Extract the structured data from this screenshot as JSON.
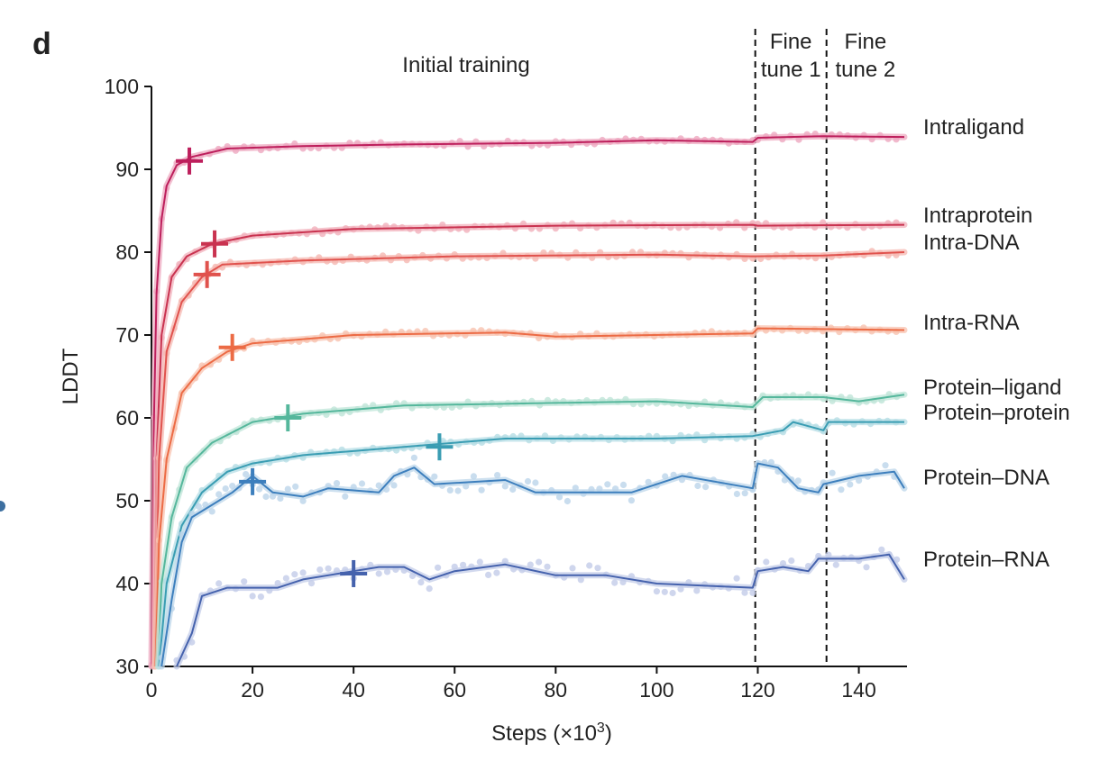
{
  "panel_label": "d",
  "chart_data": {
    "type": "line",
    "xlabel": "Steps (×10",
    "xlabel_sup": "3",
    "xlabel_end": ")",
    "ylabel": "LDDT",
    "xlim": [
      0,
      149
    ],
    "ylim": [
      30,
      100
    ],
    "xticks": [
      0,
      20,
      40,
      60,
      80,
      100,
      120,
      140
    ],
    "yticks": [
      30,
      40,
      50,
      60,
      70,
      80,
      90,
      100
    ],
    "grid": false,
    "phases": [
      {
        "label_lines": [
          "Initial training"
        ],
        "start": 0,
        "end": 119.5
      },
      {
        "label_lines": [
          "Fine",
          "tune 1"
        ],
        "start": 119.5,
        "end": 133.6
      },
      {
        "label_lines": [
          "Fine",
          "tune 2"
        ],
        "start": 133.6,
        "end": 149
      }
    ],
    "phase_boundaries": [
      119.5,
      133.6
    ],
    "series": [
      {
        "name": "Intraligand",
        "color": "#bd1f5c",
        "light": "#eea9c0",
        "marker": [
          7.5,
          91
        ],
        "points": [
          [
            0,
            30
          ],
          [
            0.5,
            60
          ],
          [
            1,
            75
          ],
          [
            2,
            84
          ],
          [
            3,
            88
          ],
          [
            5,
            90.5
          ],
          [
            8,
            91.5
          ],
          [
            15,
            92.5
          ],
          [
            30,
            92.8
          ],
          [
            50,
            93
          ],
          [
            80,
            93.2
          ],
          [
            100,
            93.5
          ],
          [
            119,
            93.3
          ],
          [
            120,
            93.8
          ],
          [
            133,
            94
          ],
          [
            149,
            93.9
          ]
        ]
      },
      {
        "name": "Intraprotein",
        "color": "#c93350",
        "light": "#f1b0bb",
        "marker": [
          12.5,
          81
        ],
        "points": [
          [
            0.5,
            30
          ],
          [
            1,
            55
          ],
          [
            2,
            70
          ],
          [
            4,
            77
          ],
          [
            7,
            79.5
          ],
          [
            12,
            81
          ],
          [
            20,
            82
          ],
          [
            40,
            82.8
          ],
          [
            80,
            83.2
          ],
          [
            119,
            83.3
          ],
          [
            120,
            83.2
          ],
          [
            149,
            83.3
          ]
        ]
      },
      {
        "name": "Intra-DNA",
        "color": "#e0524d",
        "light": "#f5b8b2",
        "marker": [
          11,
          77.3
        ],
        "points": [
          [
            0.7,
            30
          ],
          [
            1.5,
            55
          ],
          [
            3,
            68
          ],
          [
            6,
            74
          ],
          [
            10,
            77
          ],
          [
            14,
            78.5
          ],
          [
            30,
            79
          ],
          [
            60,
            79.5
          ],
          [
            100,
            79.7
          ],
          [
            119,
            79.5
          ],
          [
            133,
            79.6
          ],
          [
            149,
            80
          ]
        ]
      },
      {
        "name": "Intra-RNA",
        "color": "#ec6b45",
        "light": "#f8c3b0",
        "marker": [
          16,
          68.5
        ],
        "points": [
          [
            0.8,
            30
          ],
          [
            1.5,
            45
          ],
          [
            3,
            55
          ],
          [
            6,
            63
          ],
          [
            10,
            66
          ],
          [
            15,
            68
          ],
          [
            20,
            69
          ],
          [
            40,
            70
          ],
          [
            70,
            70.3
          ],
          [
            80,
            69.8
          ],
          [
            119,
            70.2
          ],
          [
            120,
            70.8
          ],
          [
            149,
            70.6
          ]
        ]
      },
      {
        "name": "Protein–ligand",
        "color": "#55b79c",
        "light": "#bfe5d8",
        "marker": [
          27,
          60
        ],
        "points": [
          [
            1.3,
            30
          ],
          [
            2,
            40
          ],
          [
            4,
            48
          ],
          [
            7,
            54
          ],
          [
            12,
            57
          ],
          [
            20,
            59.5
          ],
          [
            30,
            60.5
          ],
          [
            50,
            61.5
          ],
          [
            80,
            61.8
          ],
          [
            100,
            62
          ],
          [
            119,
            61.3
          ],
          [
            121,
            62.5
          ],
          [
            133,
            62.5
          ],
          [
            140,
            62
          ],
          [
            149,
            62.8
          ]
        ]
      },
      {
        "name": "Protein–protein",
        "color": "#3a9db3",
        "light": "#b6dde5",
        "marker": [
          57,
          56.5
        ],
        "points": [
          [
            1.5,
            30
          ],
          [
            3,
            40
          ],
          [
            6,
            47
          ],
          [
            10,
            51
          ],
          [
            15,
            53.5
          ],
          [
            20,
            54.5
          ],
          [
            30,
            55.5
          ],
          [
            50,
            56.5
          ],
          [
            70,
            57.5
          ],
          [
            100,
            57.5
          ],
          [
            119,
            57.8
          ],
          [
            125,
            58.5
          ],
          [
            127,
            59.5
          ],
          [
            133,
            58.5
          ],
          [
            134,
            59.5
          ],
          [
            149,
            59.5
          ]
        ]
      },
      {
        "name": "Protein–DNA",
        "color": "#3d7fbd",
        "light": "#bcd5ea",
        "marker": [
          20,
          52.3
        ],
        "points": [
          [
            2,
            30
          ],
          [
            4,
            38
          ],
          [
            6,
            45
          ],
          [
            8,
            48
          ],
          [
            12,
            49.5
          ],
          [
            16,
            51
          ],
          [
            20,
            53
          ],
          [
            24,
            51
          ],
          [
            30,
            50.5
          ],
          [
            35,
            51.5
          ],
          [
            45,
            51
          ],
          [
            48,
            53
          ],
          [
            52,
            54
          ],
          [
            56,
            52
          ],
          [
            70,
            52.5
          ],
          [
            76,
            51
          ],
          [
            95,
            51
          ],
          [
            105,
            53
          ],
          [
            119,
            51.5
          ],
          [
            120,
            54.5
          ],
          [
            124,
            54
          ],
          [
            128,
            51.5
          ],
          [
            132,
            51
          ],
          [
            133,
            52
          ],
          [
            140,
            53
          ],
          [
            147,
            53.5
          ],
          [
            149,
            51.5
          ]
        ]
      },
      {
        "name": "Protein–RNA",
        "color": "#4562ad",
        "light": "#c3cce8",
        "marker": [
          40,
          41.2
        ],
        "points": [
          [
            5,
            30
          ],
          [
            8,
            34
          ],
          [
            10,
            38.5
          ],
          [
            15,
            39.5
          ],
          [
            25,
            39.5
          ],
          [
            30,
            40.5
          ],
          [
            40,
            41.5
          ],
          [
            45,
            42
          ],
          [
            50,
            42
          ],
          [
            55,
            40.5
          ],
          [
            60,
            41.5
          ],
          [
            70,
            42.3
          ],
          [
            80,
            41
          ],
          [
            90,
            41
          ],
          [
            100,
            40
          ],
          [
            119,
            39.5
          ],
          [
            120,
            41.5
          ],
          [
            125,
            42
          ],
          [
            130,
            41.5
          ],
          [
            132,
            43
          ],
          [
            134,
            43
          ],
          [
            140,
            43
          ],
          [
            146,
            43.5
          ],
          [
            149,
            40.5
          ]
        ]
      }
    ]
  }
}
